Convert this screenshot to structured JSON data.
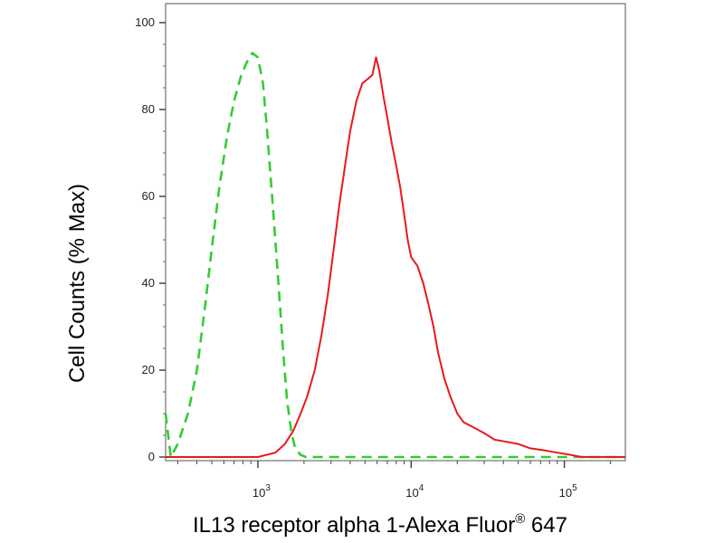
{
  "chart_data": {
    "type": "line",
    "title": "",
    "xlabel": "IL13 receptor alpha 1-Alexa Fluor",
    "xlabel_superscript": "®",
    "xlabel_suffix": " 647",
    "ylabel": "Cell Counts (% Max)",
    "x_scale": "log",
    "xlim": [
      250,
      250000
    ],
    "ylim": [
      0,
      100
    ],
    "y_ticks": [
      0,
      20,
      40,
      60,
      80,
      100
    ],
    "y_tick_labels": [
      "0",
      "20",
      "40",
      "60",
      "80",
      "100"
    ],
    "x_major_ticks": [
      1000,
      10000,
      100000
    ],
    "x_tick_labels": [
      {
        "base": "10",
        "exp": "3"
      },
      {
        "base": "10",
        "exp": "4"
      },
      {
        "base": "10",
        "exp": "5"
      }
    ],
    "grid": false,
    "legend": "none",
    "series": [
      {
        "color": "#33cc33",
        "style": "dashed",
        "x": [
          250,
          270,
          300,
          350,
          400,
          450,
          500,
          560,
          630,
          700,
          780,
          850,
          920,
          1000,
          1080,
          1150,
          1250,
          1350,
          1450,
          1550,
          1650,
          1750,
          1900,
          2050,
          2500,
          4000,
          10000,
          100000,
          250000
        ],
        "y": [
          10,
          0,
          3,
          10,
          20,
          34,
          48,
          62,
          74,
          82,
          88,
          91,
          93,
          92,
          86,
          75,
          58,
          42,
          26,
          13,
          6,
          2,
          0.5,
          0,
          0,
          0,
          0,
          0,
          0
        ]
      },
      {
        "color": "#e8191c",
        "style": "solid",
        "x": [
          250,
          1000,
          1300,
          1500,
          1700,
          1900,
          2100,
          2350,
          2600,
          2850,
          3100,
          3400,
          3700,
          4000,
          4400,
          4800,
          5200,
          5600,
          5900,
          6200,
          6600,
          7000,
          7500,
          8000,
          8500,
          9000,
          9500,
          10000,
          11000,
          12000,
          13000,
          14000,
          15000,
          16500,
          18000,
          20000,
          22000,
          25000,
          30000,
          35000,
          42000,
          50000,
          60000,
          75000,
          90000,
          110000,
          130000,
          250000
        ],
        "y": [
          0,
          0,
          1,
          3,
          6,
          10,
          14,
          20,
          28,
          37,
          47,
          58,
          67,
          75,
          82,
          86,
          87,
          88,
          92,
          89,
          83,
          78,
          72,
          67,
          62,
          56,
          50,
          46,
          44,
          40,
          35,
          30,
          24,
          18,
          14,
          10,
          8,
          7,
          5.5,
          4,
          3.5,
          3,
          2,
          1.5,
          1,
          0.5,
          0,
          0
        ]
      }
    ]
  }
}
